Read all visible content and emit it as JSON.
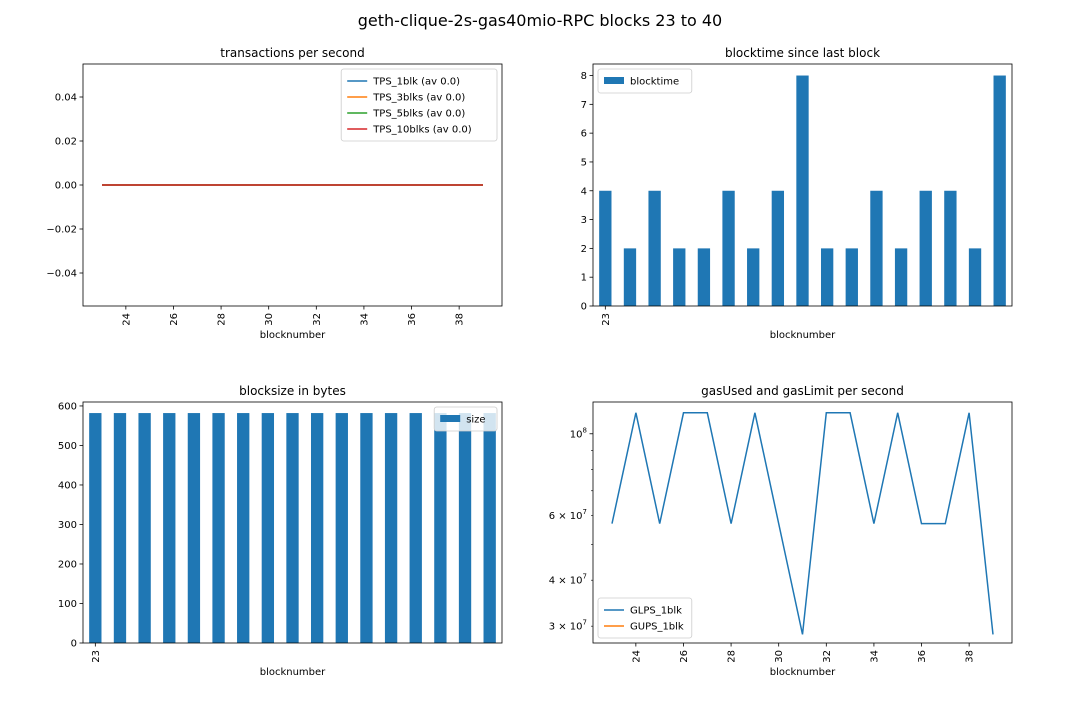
{
  "figure": {
    "suptitle": "geth-clique-2s-gas40mio-RPC blocks 23 to 40"
  },
  "colors": {
    "c0": "#1f77b4",
    "c1": "#ff7f0e",
    "c2": "#2ca02c",
    "c3": "#d62728",
    "axis": "#000000"
  },
  "chart_data": [
    {
      "id": "tps",
      "type": "line",
      "title": "transactions per second",
      "xlabel": "blocknumber",
      "ylabel": "",
      "x": [
        23,
        24,
        25,
        26,
        27,
        28,
        29,
        30,
        31,
        32,
        33,
        34,
        35,
        36,
        37,
        38,
        39
      ],
      "xticks": [
        24,
        26,
        28,
        30,
        32,
        34,
        36,
        38
      ],
      "xlim": [
        22.2,
        39.8
      ],
      "ylim": [
        -0.055,
        0.055
      ],
      "yticks": [
        -0.04,
        -0.02,
        0.0,
        0.02,
        0.04
      ],
      "yticklabels": [
        "−0.04",
        "−0.02",
        "0.00",
        "0.02",
        "0.04"
      ],
      "legend": "top-right",
      "series": [
        {
          "name": "TPS_1blk (av 0.0)",
          "color": "#1f77b4",
          "values": [
            0,
            0,
            0,
            0,
            0,
            0,
            0,
            0,
            0,
            0,
            0,
            0,
            0,
            0,
            0,
            0,
            0
          ]
        },
        {
          "name": "TPS_3blks (av 0.0)",
          "color": "#ff7f0e",
          "values": [
            0,
            0,
            0,
            0,
            0,
            0,
            0,
            0,
            0,
            0,
            0,
            0,
            0,
            0,
            0,
            0,
            0
          ]
        },
        {
          "name": "TPS_5blks (av 0.0)",
          "color": "#2ca02c",
          "values": [
            0,
            0,
            0,
            0,
            0,
            0,
            0,
            0,
            0,
            0,
            0,
            0,
            0,
            0,
            0,
            0,
            0
          ]
        },
        {
          "name": "TPS_10blks (av 0.0)",
          "color": "#d62728",
          "values": [
            0,
            0,
            0,
            0,
            0,
            0,
            0,
            0,
            0,
            0,
            0,
            0,
            0,
            0,
            0,
            0,
            0
          ]
        }
      ]
    },
    {
      "id": "blocktime",
      "type": "bar",
      "title": "blocktime since last block",
      "xlabel": "blocknumber",
      "ylabel": "",
      "categories": [
        "23",
        "24",
        "25",
        "26",
        "27",
        "28",
        "29",
        "30",
        "31",
        "32",
        "33",
        "34",
        "35",
        "36",
        "37",
        "38",
        "39"
      ],
      "xticklabels_shown": [
        "23"
      ],
      "ylim": [
        0,
        8.4
      ],
      "yticks": [
        0,
        1,
        2,
        3,
        4,
        5,
        6,
        7,
        8
      ],
      "yticklabels": [
        "0",
        "1",
        "2",
        "3",
        "4",
        "5",
        "6",
        "7",
        "8"
      ],
      "legend": "top-left",
      "series": [
        {
          "name": "blocktime",
          "color": "#1f77b4",
          "values": [
            4,
            2,
            4,
            2,
            2,
            4,
            2,
            4,
            8,
            2,
            2,
            4,
            2,
            4,
            4,
            2,
            8
          ]
        }
      ]
    },
    {
      "id": "blocksize",
      "type": "bar",
      "title": "blocksize in bytes",
      "xlabel": "blocknumber",
      "ylabel": "",
      "categories": [
        "23",
        "24",
        "25",
        "26",
        "27",
        "28",
        "29",
        "30",
        "31",
        "32",
        "33",
        "34",
        "35",
        "36",
        "37",
        "38",
        "39"
      ],
      "xticklabels_shown": [
        "23"
      ],
      "ylim": [
        0,
        610
      ],
      "yticks": [
        0,
        100,
        200,
        300,
        400,
        500,
        600
      ],
      "yticklabels": [
        "0",
        "100",
        "200",
        "300",
        "400",
        "500",
        "600"
      ],
      "legend": "top-right",
      "series": [
        {
          "name": "size",
          "color": "#1f77b4",
          "values": [
            582,
            582,
            582,
            582,
            582,
            582,
            582,
            582,
            582,
            582,
            582,
            582,
            582,
            582,
            582,
            582,
            582
          ]
        }
      ]
    },
    {
      "id": "gas",
      "type": "line",
      "title": "gasUsed and gasLimit per second",
      "xlabel": "blocknumber",
      "ylabel": "",
      "yscale": "log",
      "x": [
        23,
        24,
        25,
        26,
        27,
        28,
        29,
        30,
        31,
        32,
        33,
        34,
        35,
        36,
        37,
        38,
        39
      ],
      "xticks": [
        24,
        26,
        28,
        30,
        32,
        34,
        36,
        38
      ],
      "xlim": [
        22.2,
        39.8
      ],
      "ylim": [
        27000000,
        122000000
      ],
      "yticks_major": [
        100000000
      ],
      "yticks_minor": [
        30000000,
        40000000,
        50000000,
        60000000,
        70000000,
        80000000,
        90000000
      ],
      "ytick_labels": [
        {
          "value": 100000000,
          "mantissa": "",
          "base": "10",
          "exp": "8"
        },
        {
          "value": 60000000,
          "mantissa": "6",
          "base": "10",
          "exp": "7"
        },
        {
          "value": 40000000,
          "mantissa": "4",
          "base": "10",
          "exp": "7"
        },
        {
          "value": 30000000,
          "mantissa": "3",
          "base": "10",
          "exp": "7"
        }
      ],
      "legend": "bottom-left",
      "series": [
        {
          "name": "GLPS_1blk",
          "color": "#1f77b4",
          "values": [
            57000000,
            114000000,
            57000000,
            114000000,
            114000000,
            57000000,
            114000000,
            57000000,
            28500000,
            114000000,
            114000000,
            57000000,
            114000000,
            57000000,
            57000000,
            114000000,
            28500000
          ]
        },
        {
          "name": "GUPS_1blk",
          "color": "#ff7f0e",
          "values": [
            0,
            0,
            0,
            0,
            0,
            0,
            0,
            0,
            0,
            0,
            0,
            0,
            0,
            0,
            0,
            0,
            0
          ]
        }
      ]
    }
  ]
}
